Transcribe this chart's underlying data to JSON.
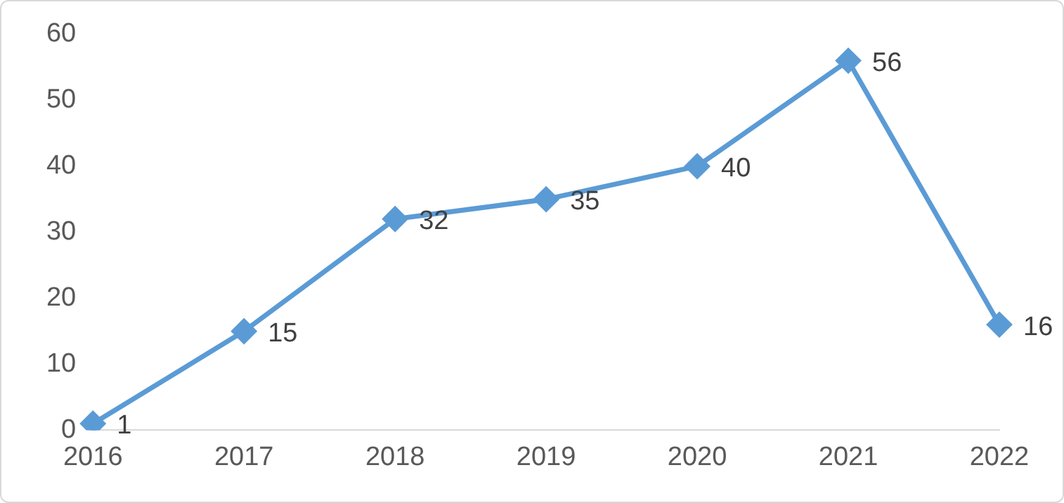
{
  "chart_data": {
    "type": "line",
    "categories": [
      "2016",
      "2017",
      "2018",
      "2019",
      "2020",
      "2021",
      "2022"
    ],
    "series": [
      {
        "color": "#5b9bd5",
        "values": [
          1,
          15,
          32,
          35,
          40,
          56,
          16
        ]
      }
    ],
    "ylim": [
      0,
      60
    ],
    "yticks": [
      0,
      10,
      20,
      30,
      40,
      50,
      60
    ],
    "grid": false,
    "legend": false,
    "marker": "diamond",
    "line_style": "solid",
    "data_labels": true
  }
}
